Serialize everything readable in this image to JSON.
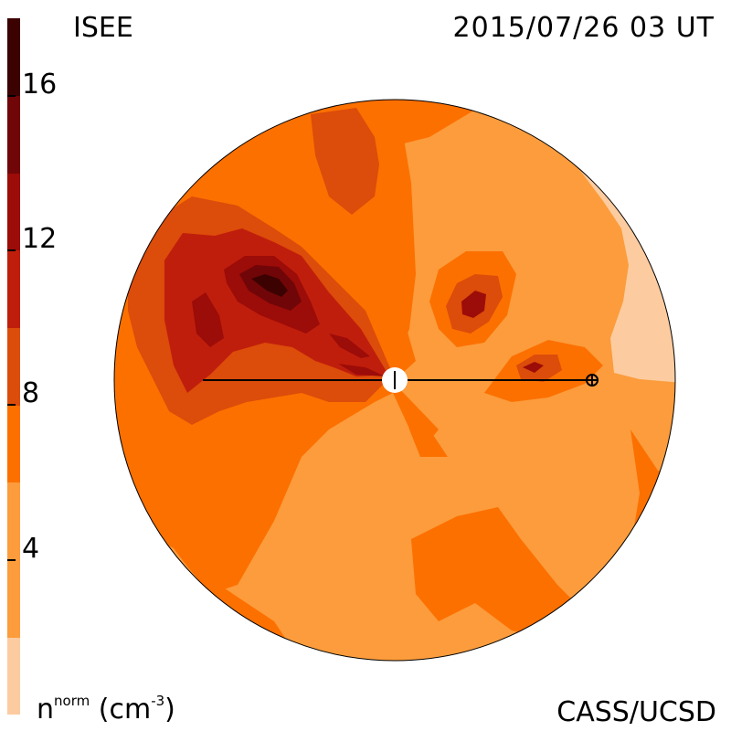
{
  "header": {
    "observatory": "ISEE",
    "timestamp": "2015/07/26 03 UT"
  },
  "footer": {
    "credit": "CASS/UCSD",
    "quantity_symbol": "n",
    "quantity_superscript": "norm",
    "unit_open": " (cm",
    "unit_exponent": "-3",
    "unit_close": ")"
  },
  "colorbar": {
    "range": [
      0,
      18
    ],
    "tick_labels": [
      "4",
      "8",
      "12",
      "16"
    ],
    "levels": [
      {
        "from": 0,
        "to": 2,
        "color": "#fccca0"
      },
      {
        "from": 2,
        "to": 6,
        "color": "#fc9c3c"
      },
      {
        "from": 6,
        "to": 8,
        "color": "#fc7000"
      },
      {
        "from": 8,
        "to": 10,
        "color": "#dc4c0a"
      },
      {
        "from": 10,
        "to": 12,
        "color": "#c01e0c"
      },
      {
        "from": 12,
        "to": 14,
        "color": "#9c0c08"
      },
      {
        "from": 14,
        "to": 16,
        "color": "#700608"
      },
      {
        "from": 16,
        "to": 18,
        "color": "#3c0202"
      }
    ]
  },
  "map": {
    "sun_marker": "sun-icon",
    "earth_marker": "earth-icon"
  }
}
